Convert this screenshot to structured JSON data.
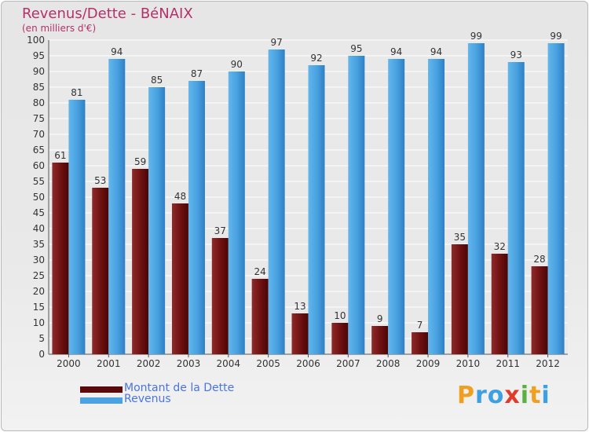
{
  "header": {
    "title": "Revenus/Dette - BéNAIX",
    "subtitle": "(en milliers d'€)"
  },
  "legend": {
    "debt_label": "Montant de la Dette",
    "revenue_label": "Revenus"
  },
  "logo": {
    "text": "Proxiti",
    "letters": [
      "P",
      "r",
      "o",
      "x",
      "i",
      "t",
      "i"
    ]
  },
  "colors": {
    "debt": "#7a1a1a",
    "revenue": "#4aa3e0",
    "title": "#b5306a",
    "legend_text": "#4a74e0"
  },
  "chart_data": {
    "type": "bar",
    "title": "Revenus/Dette - BéNAIX",
    "subtitle": "(en milliers d'€)",
    "categories": [
      "2000",
      "2001",
      "2002",
      "2003",
      "2004",
      "2005",
      "2006",
      "2007",
      "2008",
      "2009",
      "2010",
      "2011",
      "2012"
    ],
    "series": [
      {
        "name": "Montant de la Dette",
        "values": [
          61,
          53,
          59,
          48,
          37,
          24,
          13,
          10,
          9,
          7,
          35,
          32,
          28
        ]
      },
      {
        "name": "Revenus",
        "values": [
          81,
          94,
          85,
          87,
          90,
          97,
          92,
          95,
          94,
          94,
          99,
          93,
          99
        ]
      }
    ],
    "ylim": [
      0,
      100
    ],
    "yticks": [
      0,
      5,
      10,
      15,
      20,
      25,
      30,
      35,
      40,
      45,
      50,
      55,
      60,
      65,
      70,
      75,
      80,
      85,
      90,
      95,
      100
    ],
    "grid": true,
    "legend_position": "bottom-left"
  }
}
